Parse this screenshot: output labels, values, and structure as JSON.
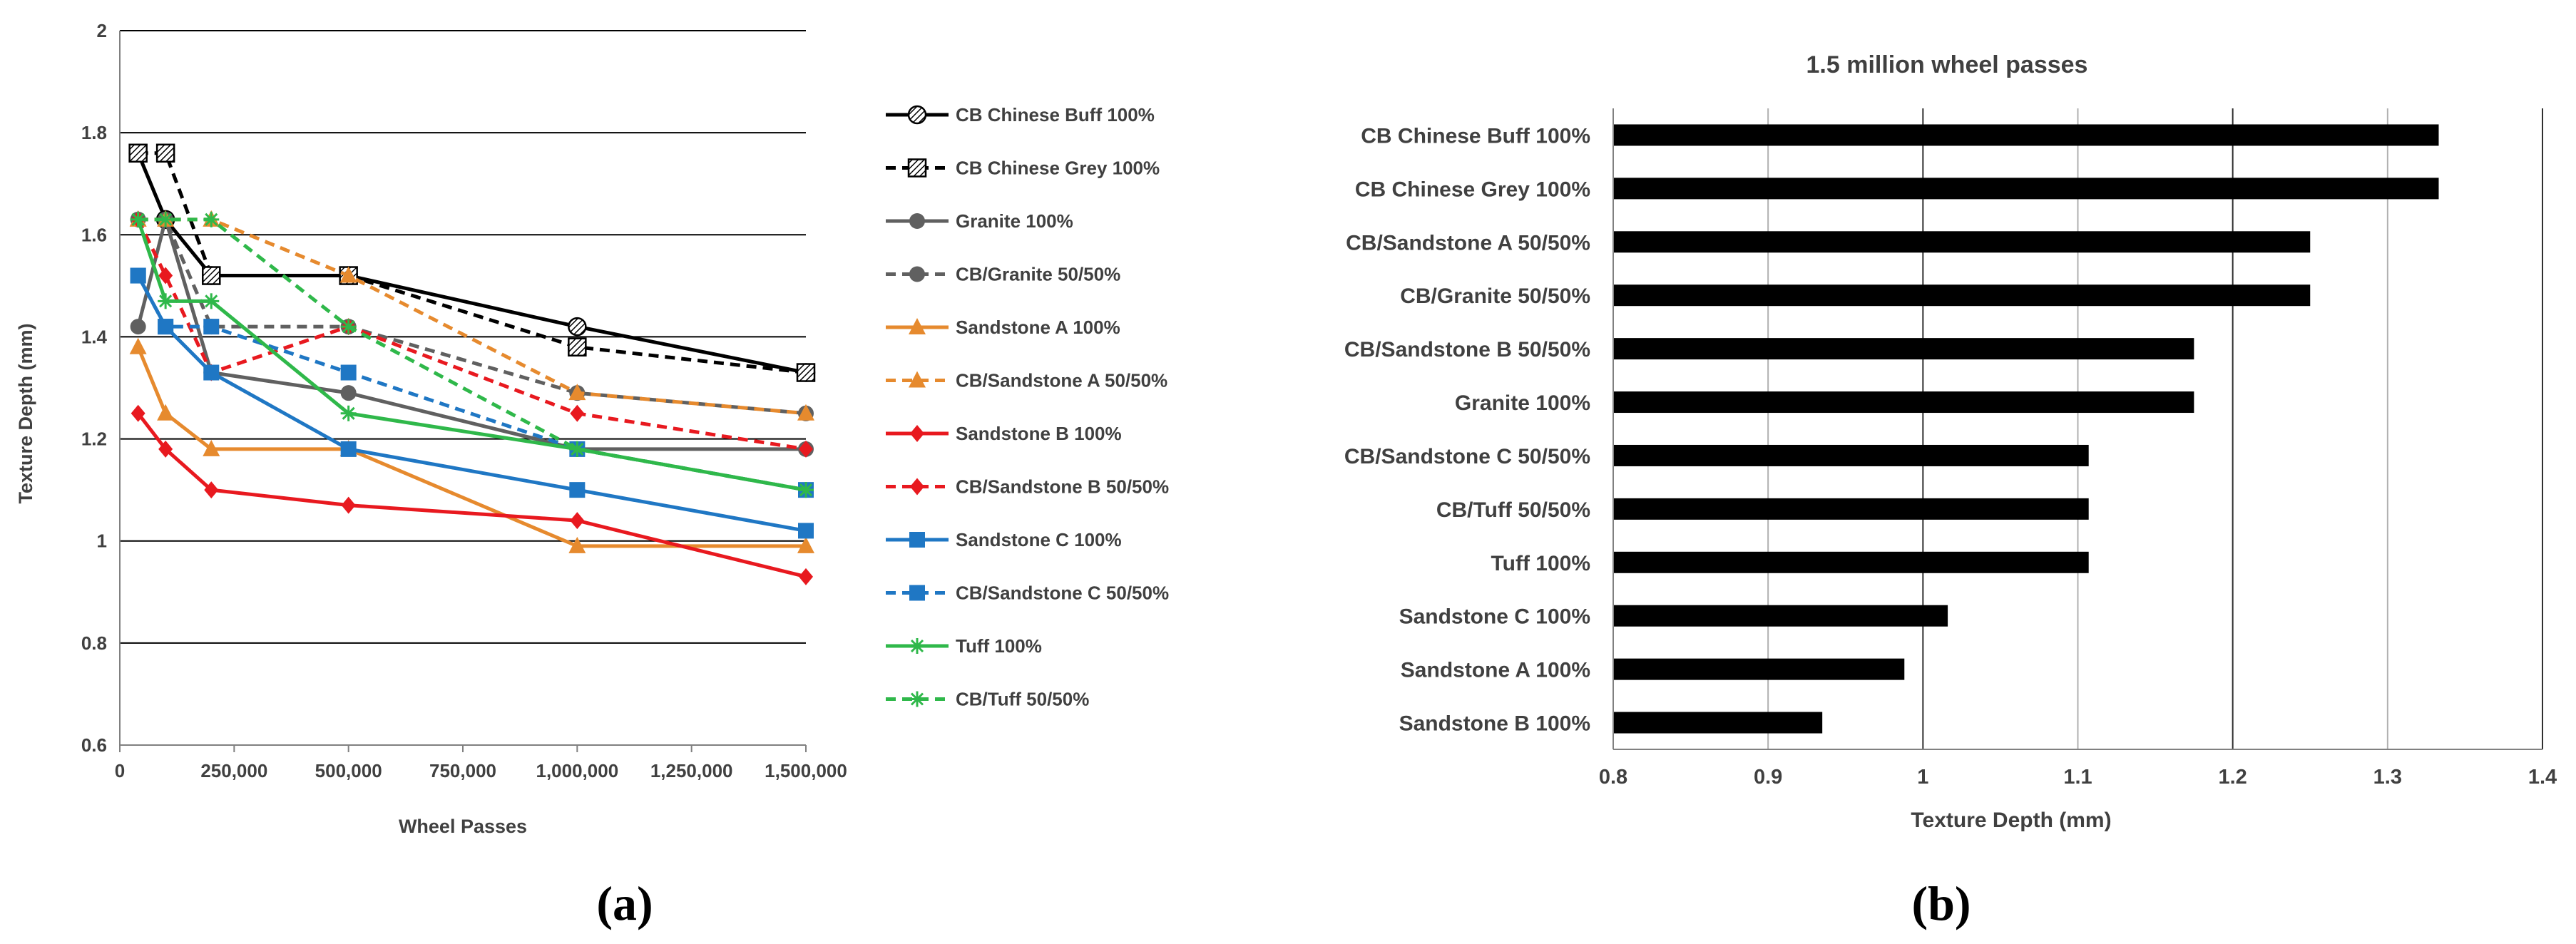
{
  "chart_data": [
    {
      "type": "line",
      "panel_label": "(a)",
      "xlabel": "Wheel Passes",
      "ylabel": "Texture Depth (mm)",
      "xlim": [
        0,
        1500000
      ],
      "ylim": [
        0.6,
        2
      ],
      "x_ticks": [
        0,
        250000,
        500000,
        750000,
        1000000,
        1250000,
        1500000
      ],
      "x_tick_labels": [
        "0",
        "250,000",
        "500,000",
        "750,000",
        "1,000,000",
        "1,250,000",
        "1,500,000"
      ],
      "y_ticks": [
        0.6,
        0.8,
        1,
        1.2,
        1.4,
        1.6,
        1.8,
        2
      ],
      "y_tick_labels": [
        "0.6",
        "0.8",
        "1",
        "1.2",
        "1.4",
        "1.6",
        "1.8",
        "2"
      ],
      "grid": "horizontal",
      "legend_position": "right",
      "x": [
        40000,
        100000,
        200000,
        500000,
        1000000,
        1500000
      ],
      "series": [
        {
          "name": "CB Chinese Buff 100%",
          "values": [
            1.76,
            1.63,
            1.52,
            1.52,
            1.42,
            1.33
          ],
          "color": "#000000",
          "dash": "solid",
          "marker": "hatched-circle"
        },
        {
          "name": "CB Chinese Grey 100%",
          "values": [
            1.76,
            1.76,
            1.52,
            1.52,
            1.38,
            1.33
          ],
          "color": "#000000",
          "dash": "dashed",
          "marker": "hatched-square"
        },
        {
          "name": "Granite 100%",
          "values": [
            1.42,
            1.63,
            1.33,
            1.29,
            1.18,
            1.18
          ],
          "color": "#606060",
          "dash": "solid",
          "marker": "circle"
        },
        {
          "name": "CB/Granite 50/50%",
          "values": [
            1.63,
            1.63,
            1.42,
            1.42,
            1.29,
            1.25
          ],
          "color": "#606060",
          "dash": "dashed",
          "marker": "circle"
        },
        {
          "name": "Sandstone A 100%",
          "values": [
            1.38,
            1.25,
            1.18,
            1.18,
            0.99,
            0.99
          ],
          "color": "#e68a2e",
          "dash": "solid",
          "marker": "triangle"
        },
        {
          "name": "CB/Sandstone A 50/50%",
          "values": [
            1.63,
            1.63,
            1.63,
            1.52,
            1.29,
            1.25
          ],
          "color": "#e68a2e",
          "dash": "dashed",
          "marker": "triangle"
        },
        {
          "name": "Sandstone B 100%",
          "values": [
            1.25,
            1.18,
            1.1,
            1.07,
            1.04,
            0.93
          ],
          "color": "#e8191f",
          "dash": "solid",
          "marker": "diamond"
        },
        {
          "name": "CB/Sandstone B 50/50%",
          "values": [
            1.63,
            1.52,
            1.33,
            1.42,
            1.25,
            1.18
          ],
          "color": "#e8191f",
          "dash": "dashed",
          "marker": "diamond"
        },
        {
          "name": "Sandstone C 100%",
          "values": [
            1.52,
            1.42,
            1.33,
            1.18,
            1.1,
            1.02
          ],
          "color": "#1f77c4",
          "dash": "solid",
          "marker": "square"
        },
        {
          "name": "CB/Sandstone C 50/50%",
          "values": [
            1.52,
            1.42,
            1.42,
            1.33,
            1.18,
            1.1
          ],
          "color": "#1f77c4",
          "dash": "dashed",
          "marker": "square"
        },
        {
          "name": "Tuff 100%",
          "values": [
            1.63,
            1.47,
            1.47,
            1.25,
            1.18,
            1.1
          ],
          "color": "#2fb84a",
          "dash": "solid",
          "marker": "star"
        },
        {
          "name": "CB/Tuff 50/50%",
          "values": [
            1.63,
            1.63,
            1.63,
            1.42,
            1.18,
            1.1
          ],
          "color": "#2fb84a",
          "dash": "dashed",
          "marker": "star"
        }
      ]
    },
    {
      "type": "bar",
      "orientation": "horizontal",
      "panel_label": "(b)",
      "title": "1.5 million wheel passes",
      "xlabel": "Texture Depth (mm)",
      "xlim": [
        0.8,
        1.4
      ],
      "x_ticks": [
        0.8,
        0.9,
        1,
        1.1,
        1.2,
        1.3,
        1.4
      ],
      "x_tick_labels": [
        "0.8",
        "0.9",
        "1",
        "1.1",
        "1.2",
        "1.3",
        "1.4"
      ],
      "grid": "vertical",
      "bar_color": "#000000",
      "categories": [
        "CB Chinese Buff 100%",
        "CB Chinese Grey 100%",
        "CB/Sandstone A 50/50%",
        "CB/Granite 50/50%",
        "CB/Sandstone B 50/50%",
        "Granite 100%",
        "CB/Sandstone C 50/50%",
        "CB/Tuff 50/50%",
        "Tuff 100%",
        "Sandstone C 100%",
        "Sandstone A 100%",
        "Sandstone B 100%"
      ],
      "values": [
        1.333,
        1.333,
        1.25,
        1.25,
        1.175,
        1.175,
        1.107,
        1.107,
        1.107,
        1.016,
        0.988,
        0.935
      ]
    }
  ]
}
